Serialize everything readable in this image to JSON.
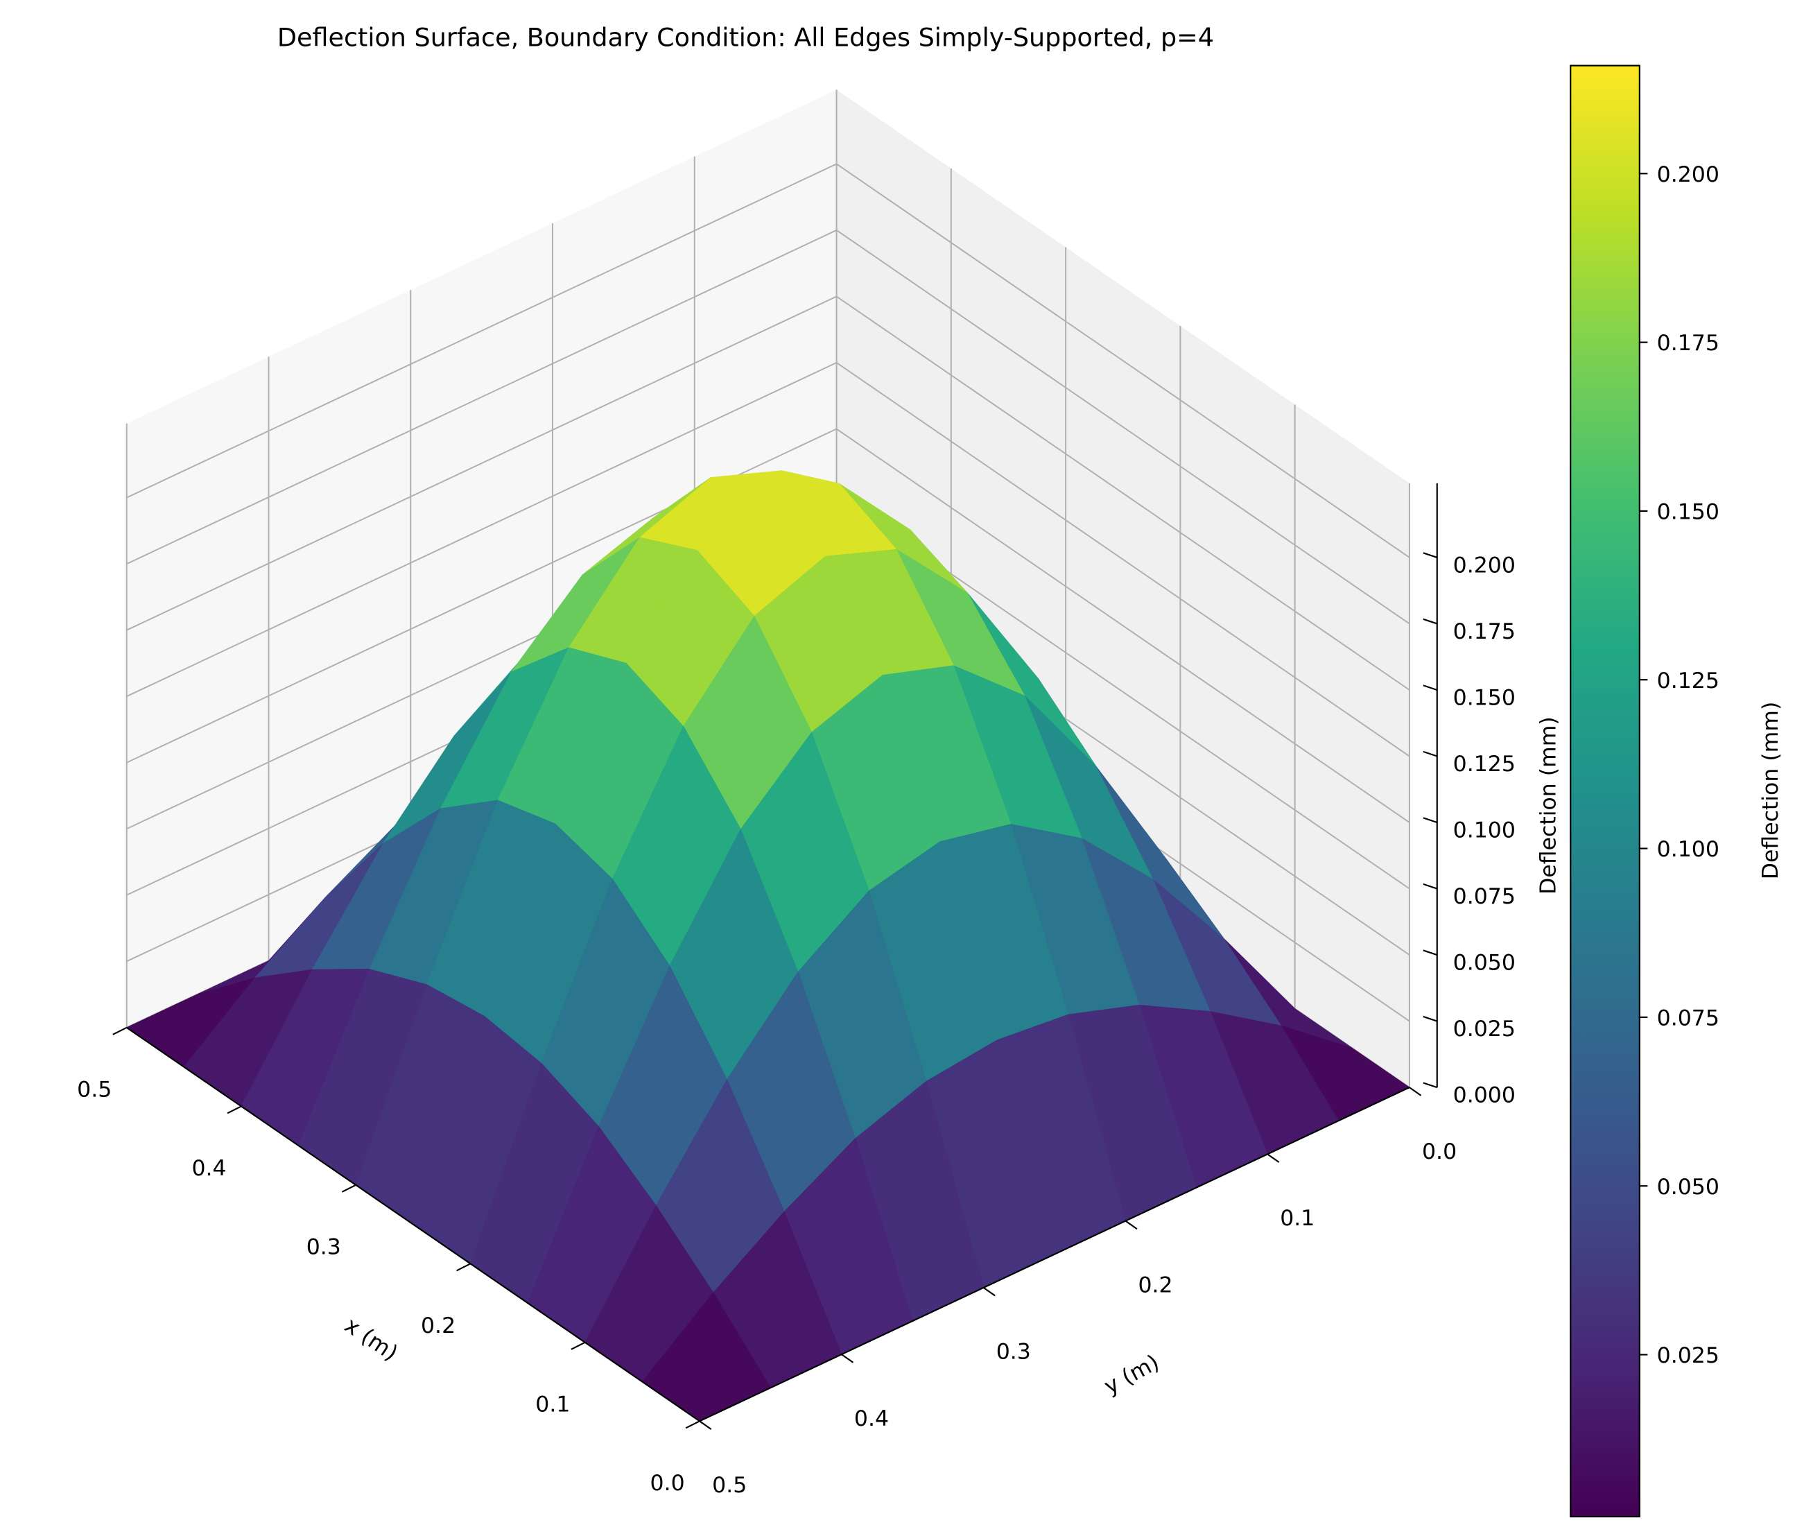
{
  "chart_data": {
    "type": "surface",
    "title": "Deflection Surface, Boundary Condition: All Edges Simply-Supported, p=4",
    "xlabel": "x (m)",
    "ylabel": "y (m)",
    "zlabel": "Deflection (mm)",
    "colorbar_label": "Deflection (mm)",
    "colormap": "viridis",
    "x": [
      0,
      0.05,
      0.1,
      0.15,
      0.2,
      0.25,
      0.3,
      0.35,
      0.4,
      0.45,
      0.5
    ],
    "y": [
      0,
      0.05,
      0.1,
      0.15,
      0.2,
      0.25,
      0.3,
      0.35,
      0.4,
      0.45,
      0.5
    ],
    "z": [
      [
        0,
        0,
        0,
        0,
        0,
        0,
        0,
        0,
        0,
        0,
        0
      ],
      [
        0,
        0.021,
        0.039,
        0.054,
        0.063,
        0.066,
        0.063,
        0.054,
        0.039,
        0.021,
        0
      ],
      [
        0,
        0.039,
        0.074,
        0.102,
        0.12,
        0.126,
        0.12,
        0.102,
        0.074,
        0.039,
        0
      ],
      [
        0,
        0.054,
        0.102,
        0.141,
        0.165,
        0.174,
        0.165,
        0.141,
        0.102,
        0.054,
        0
      ],
      [
        0,
        0.063,
        0.12,
        0.165,
        0.194,
        0.204,
        0.194,
        0.165,
        0.12,
        0.063,
        0
      ],
      [
        0,
        0.066,
        0.126,
        0.174,
        0.204,
        0.215,
        0.204,
        0.174,
        0.126,
        0.066,
        0
      ],
      [
        0,
        0.063,
        0.12,
        0.165,
        0.194,
        0.204,
        0.194,
        0.165,
        0.12,
        0.063,
        0
      ],
      [
        0,
        0.054,
        0.102,
        0.141,
        0.165,
        0.174,
        0.165,
        0.141,
        0.102,
        0.054,
        0
      ],
      [
        0,
        0.039,
        0.074,
        0.102,
        0.12,
        0.126,
        0.12,
        0.102,
        0.074,
        0.039,
        0
      ],
      [
        0,
        0.021,
        0.039,
        0.054,
        0.063,
        0.066,
        0.063,
        0.054,
        0.039,
        0.021,
        0
      ],
      [
        0,
        0,
        0,
        0,
        0,
        0,
        0,
        0,
        0,
        0,
        0
      ]
    ],
    "xlim": [
      0,
      0.5
    ],
    "ylim": [
      0,
      0.5
    ],
    "zlim": [
      0,
      0.228
    ],
    "xticks": [
      {
        "value": 0,
        "label": "0.0"
      },
      0.1,
      0.2,
      0.3,
      0.4,
      0.5
    ],
    "yticks": [
      {
        "value": 0,
        "label": "0.0"
      },
      0.1,
      0.2,
      0.3,
      0.4,
      0.5
    ],
    "zticks": [
      {
        "value": 0,
        "label": "0.000"
      },
      0.025,
      {
        "value": 0.05,
        "label": "0.050"
      },
      0.075,
      {
        "value": 0.1,
        "label": "0.100"
      },
      0.125,
      {
        "value": 0.15,
        "label": "0.150"
      },
      0.175,
      {
        "value": 0.2,
        "label": "0.200"
      }
    ],
    "clim": [
      0.001,
      0.216
    ],
    "cticks": [
      0.025,
      {
        "value": 0.05,
        "label": "0.050"
      },
      0.075,
      {
        "value": 0.1,
        "label": "0.100"
      },
      0.125,
      {
        "value": 0.15,
        "label": "0.150"
      },
      0.175,
      {
        "value": 0.2,
        "label": "0.200"
      }
    ],
    "grid": true
  }
}
